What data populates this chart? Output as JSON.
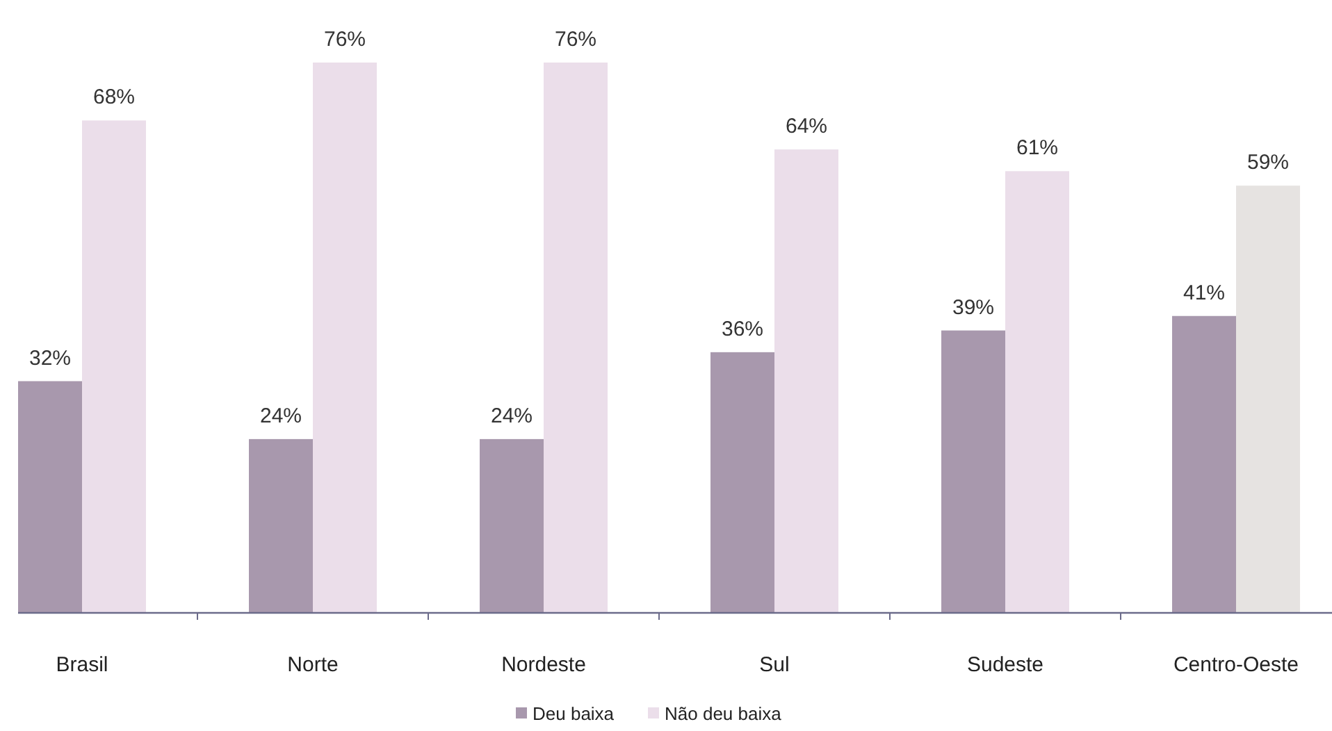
{
  "chart_data": {
    "type": "bar",
    "categories": [
      "Brasil",
      "Norte",
      "Nordeste",
      "Sul",
      "Sudeste",
      "Centro-Oeste"
    ],
    "series": [
      {
        "name": "Deu baixa",
        "color": "#a898ad",
        "values": [
          32,
          24,
          24,
          36,
          39,
          41
        ],
        "value_labels": [
          "32%",
          "24%",
          "24%",
          "36%",
          "39%",
          "41%"
        ]
      },
      {
        "name": "Não deu baixa",
        "color": "#ebdeea",
        "colors": [
          "#ebdeea",
          "#ebdeea",
          "#ebdeea",
          "#ebdeea",
          "#ebdeea",
          "#e6e3e1"
        ],
        "values": [
          68,
          76,
          76,
          64,
          61,
          59
        ],
        "value_labels": [
          "68%",
          "76%",
          "76%",
          "64%",
          "61%",
          "59%"
        ]
      }
    ],
    "legend": "bottom"
  }
}
